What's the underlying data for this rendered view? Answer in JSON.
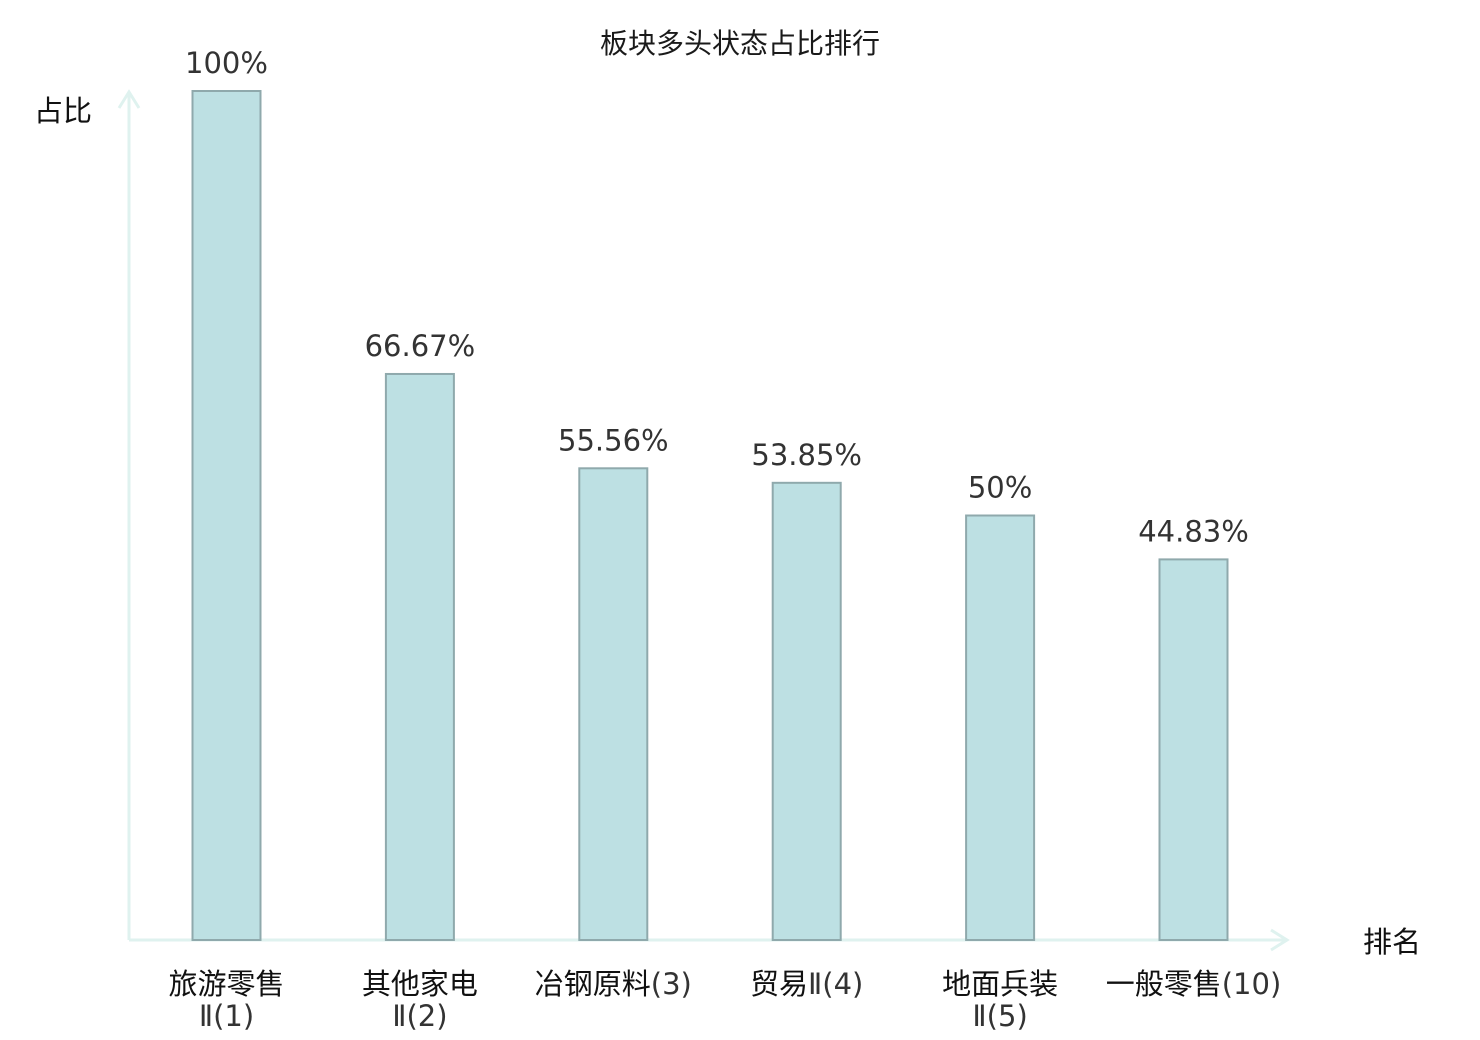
{
  "chart_data": {
    "type": "bar",
    "title": "板块多头状态占比排行",
    "ylabel": "占比",
    "xlabel": "排名",
    "ylim": [
      0,
      100
    ],
    "grid": false,
    "categories": [
      {
        "name": "旅游零售",
        "rank": "Ⅱ(1)",
        "rank_inline": false,
        "highlight": false
      },
      {
        "name": "其他家电",
        "rank": "Ⅱ(2)",
        "rank_inline": false,
        "highlight": false
      },
      {
        "name": "冶钢原料",
        "rank": "(3)",
        "rank_inline": true,
        "highlight": false
      },
      {
        "name": "贸易",
        "rank": "Ⅱ(4)",
        "rank_inline": true,
        "highlight": false
      },
      {
        "name": "地面兵装",
        "rank": "Ⅱ(5)",
        "rank_inline": false,
        "highlight": false
      },
      {
        "name": "一般零售",
        "rank": "(10)",
        "rank_inline": true,
        "highlight": true
      }
    ],
    "values": [
      100,
      66.67,
      55.56,
      53.85,
      50,
      44.83
    ],
    "value_labels": [
      "100%",
      "66.67%",
      "55.56%",
      "53.85%",
      "50%",
      "44.83%"
    ],
    "colors": {
      "bar_fill": "#bde0e3",
      "bar_stroke": "#8fa9ac",
      "axis": "#dff2ef",
      "highlight_text": "#e02020"
    }
  }
}
